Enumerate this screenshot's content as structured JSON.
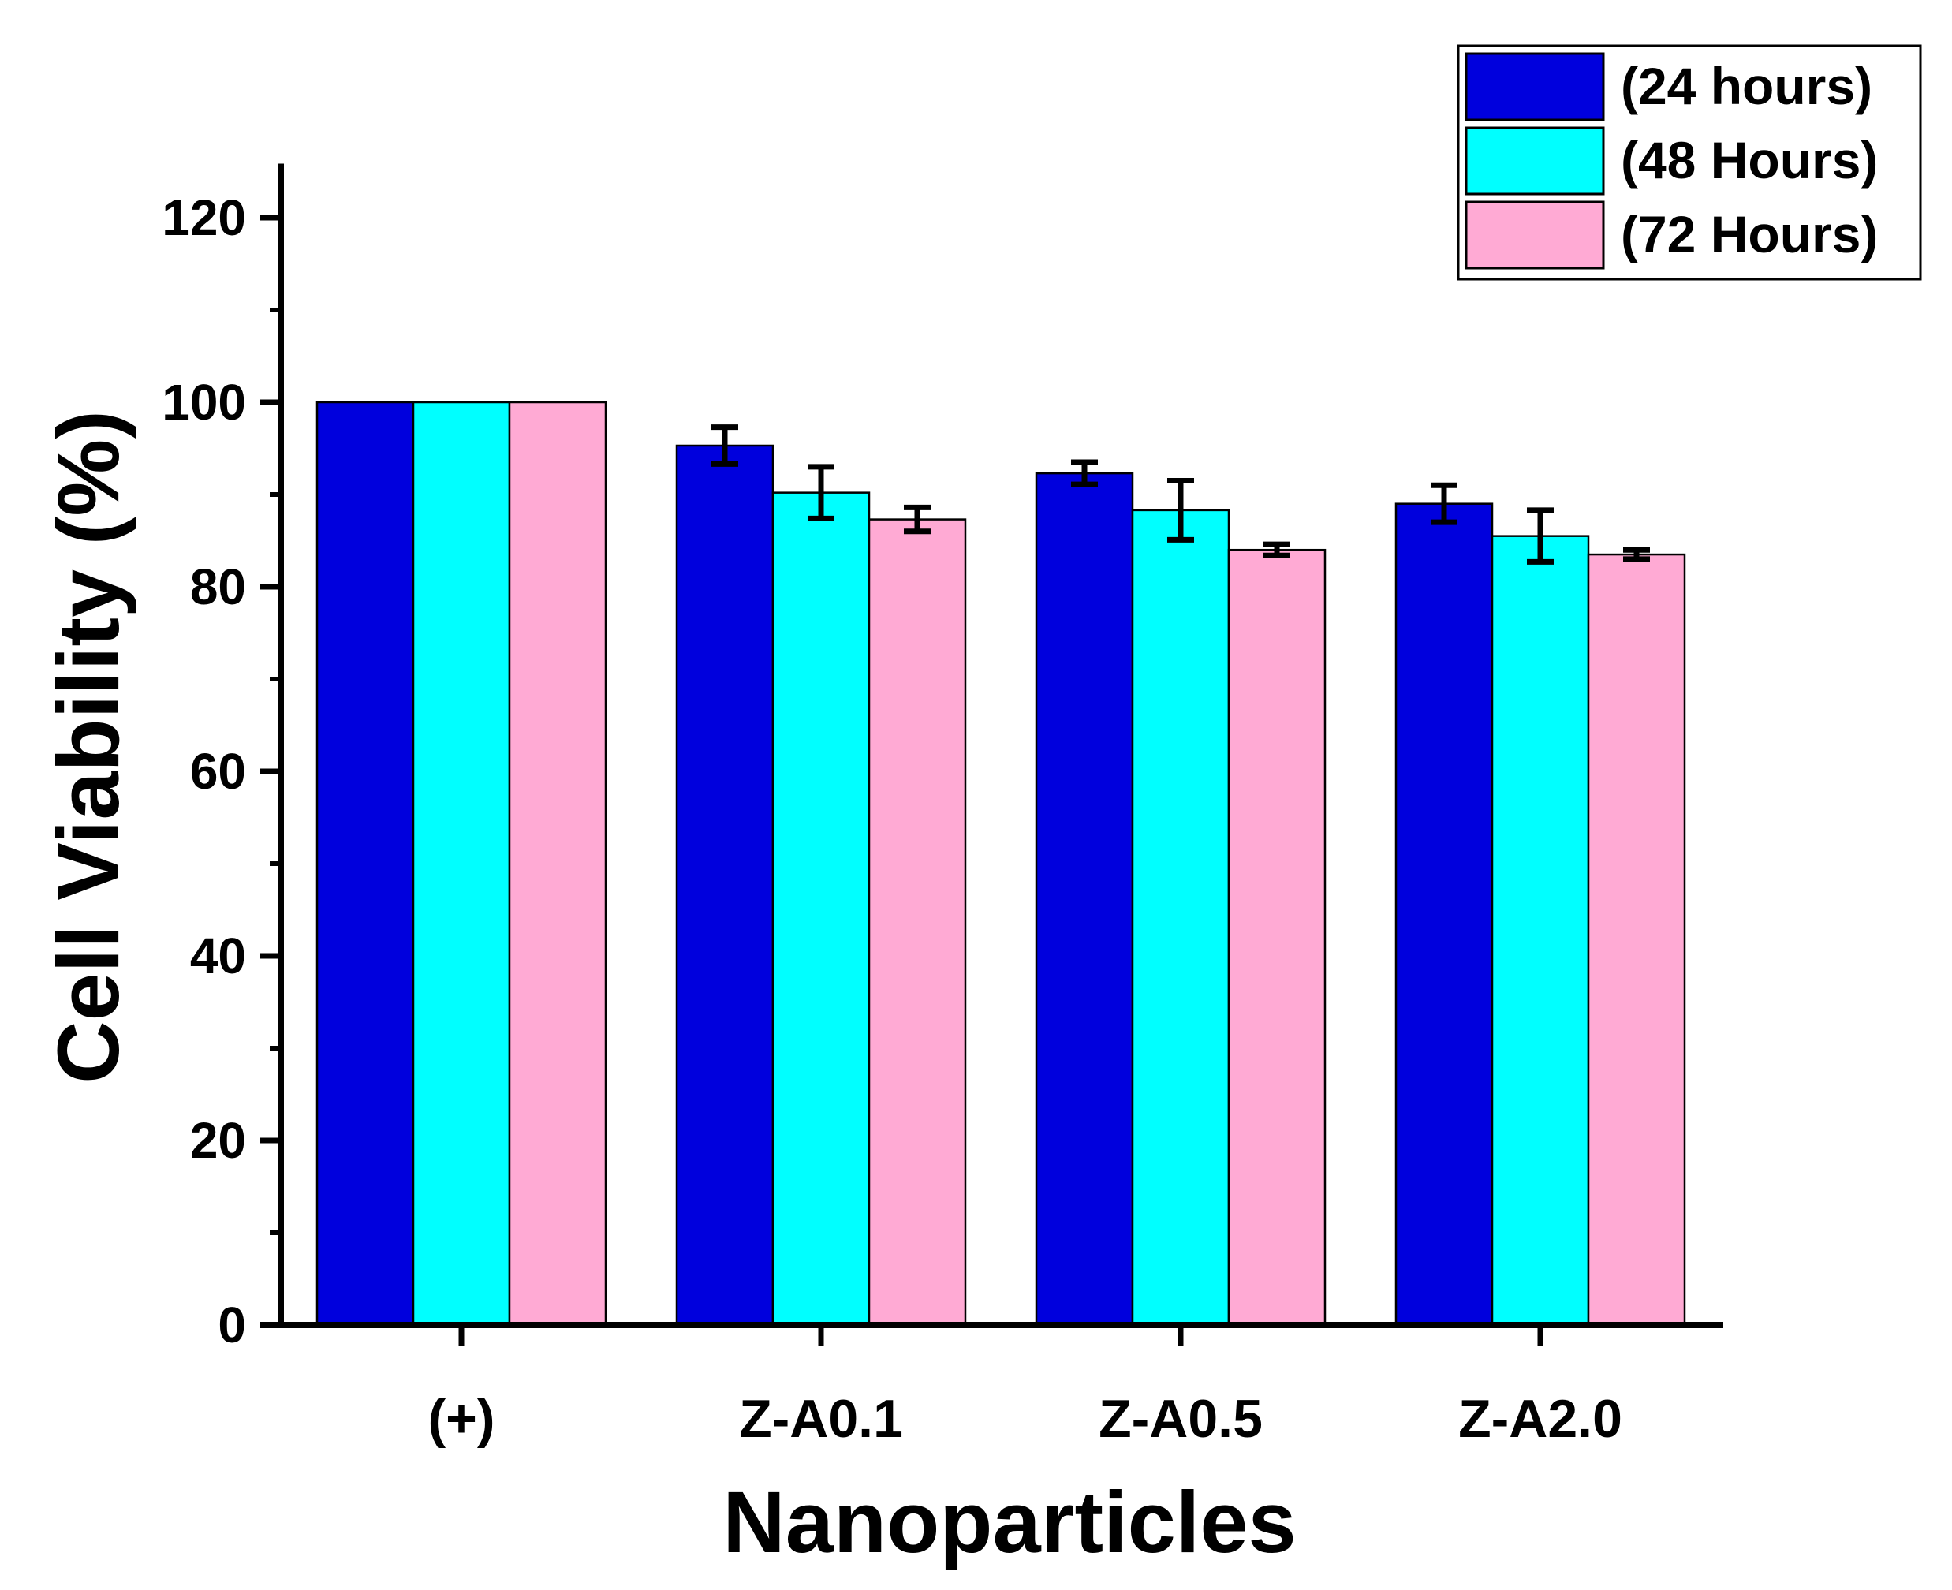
{
  "chart_data": {
    "type": "bar",
    "title": "",
    "xlabel": "Nanoparticles",
    "ylabel": "Cell Viability (%)",
    "ylim": [
      0,
      125
    ],
    "yticks": [
      0,
      20,
      40,
      60,
      80,
      100,
      120
    ],
    "ytick_labels": [
      "0",
      "20",
      "40",
      "60",
      "80",
      "100",
      "120"
    ],
    "categories": [
      "(+)",
      "Z-A0.1",
      "Z-A0.5",
      "Z-A2.0"
    ],
    "legend_position": "top-right",
    "series": [
      {
        "name": "(24 hours)",
        "color": "#0000dd",
        "values": [
          100,
          95.3,
          92.3,
          89.0
        ],
        "errors": [
          0,
          2.0,
          1.2,
          2.0
        ]
      },
      {
        "name": "(48 Hours)",
        "color": "#00ffff",
        "values": [
          100,
          90.2,
          88.3,
          85.5
        ],
        "errors": [
          0,
          2.8,
          3.2,
          2.8
        ]
      },
      {
        "name": "(72 Hours)",
        "color": "#ffaad4",
        "values": [
          100,
          87.3,
          84.0,
          83.5
        ],
        "errors": [
          0,
          1.3,
          0.6,
          0.5
        ]
      }
    ]
  }
}
